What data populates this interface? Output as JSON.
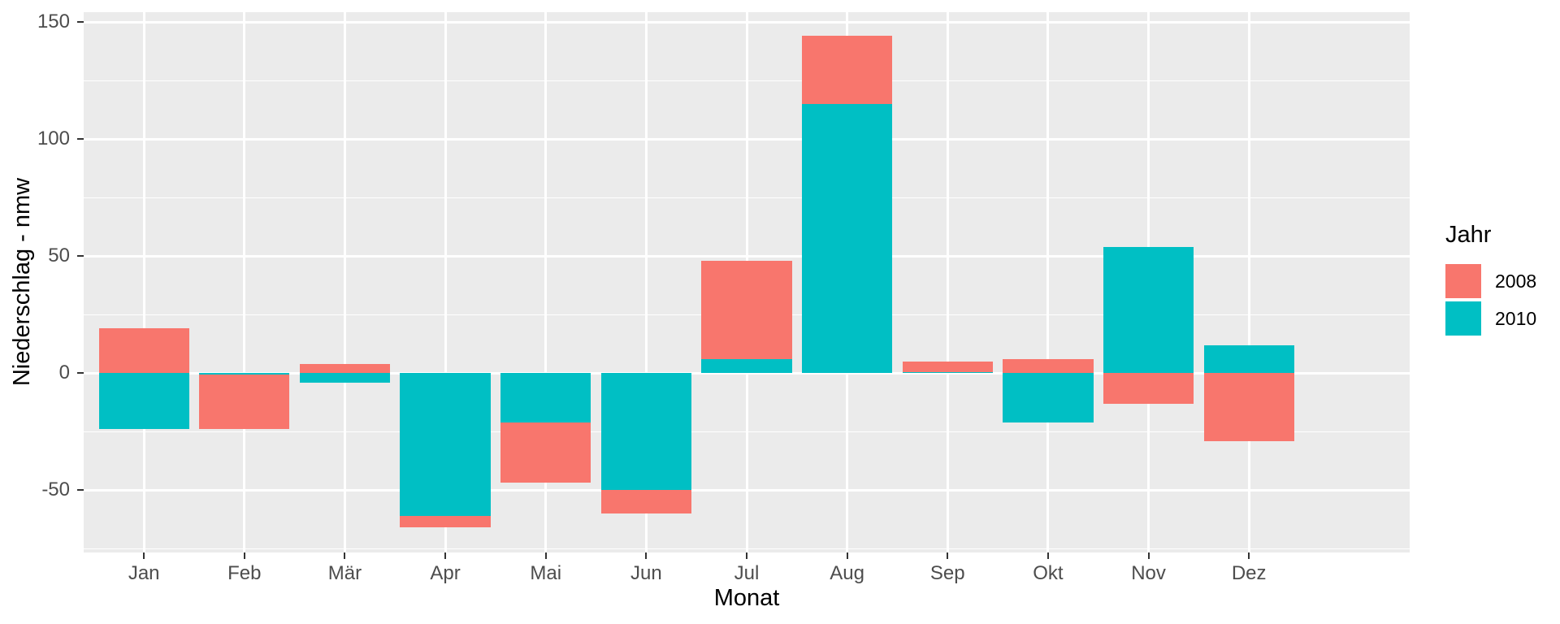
{
  "chart_data": {
    "type": "bar",
    "stacked": true,
    "categories": [
      "Jan",
      "Feb",
      "Mär",
      "Apr",
      "Mai",
      "Jun",
      "Jul",
      "Aug",
      "Sep",
      "Okt",
      "Nov",
      "Dez"
    ],
    "series": [
      {
        "name": "2008",
        "color": "#F8766D",
        "values": [
          19,
          -23.5,
          4,
          -5,
          -26,
          -10,
          42,
          29,
          4.5,
          6,
          -13,
          -29
        ]
      },
      {
        "name": "2010",
        "color": "#00BFC4",
        "values": [
          -24,
          -0.5,
          -4,
          -61,
          -21,
          -50,
          6,
          115,
          0.5,
          -21,
          54,
          12
        ]
      }
    ],
    "stack_order": [
      "2010",
      "2008"
    ],
    "title": "",
    "xlabel": "Monat",
    "ylabel": "Niederschlag - nmw",
    "yticks": [
      150,
      100,
      50,
      0,
      -50
    ],
    "yticks_minor": [
      125,
      75,
      25,
      -25,
      -75
    ],
    "ylim": [
      -76.7,
      154.2
    ],
    "legend": {
      "title": "Jahr",
      "position": "right",
      "entries": [
        "2008",
        "2010"
      ]
    },
    "grid": true,
    "panel_bg": "#EBEBEB",
    "grid_color": "#FFFFFF",
    "tick_label_color": "#4d4d4d",
    "tick_mark_color": "#333333",
    "bar_width_ratio": 0.9
  }
}
